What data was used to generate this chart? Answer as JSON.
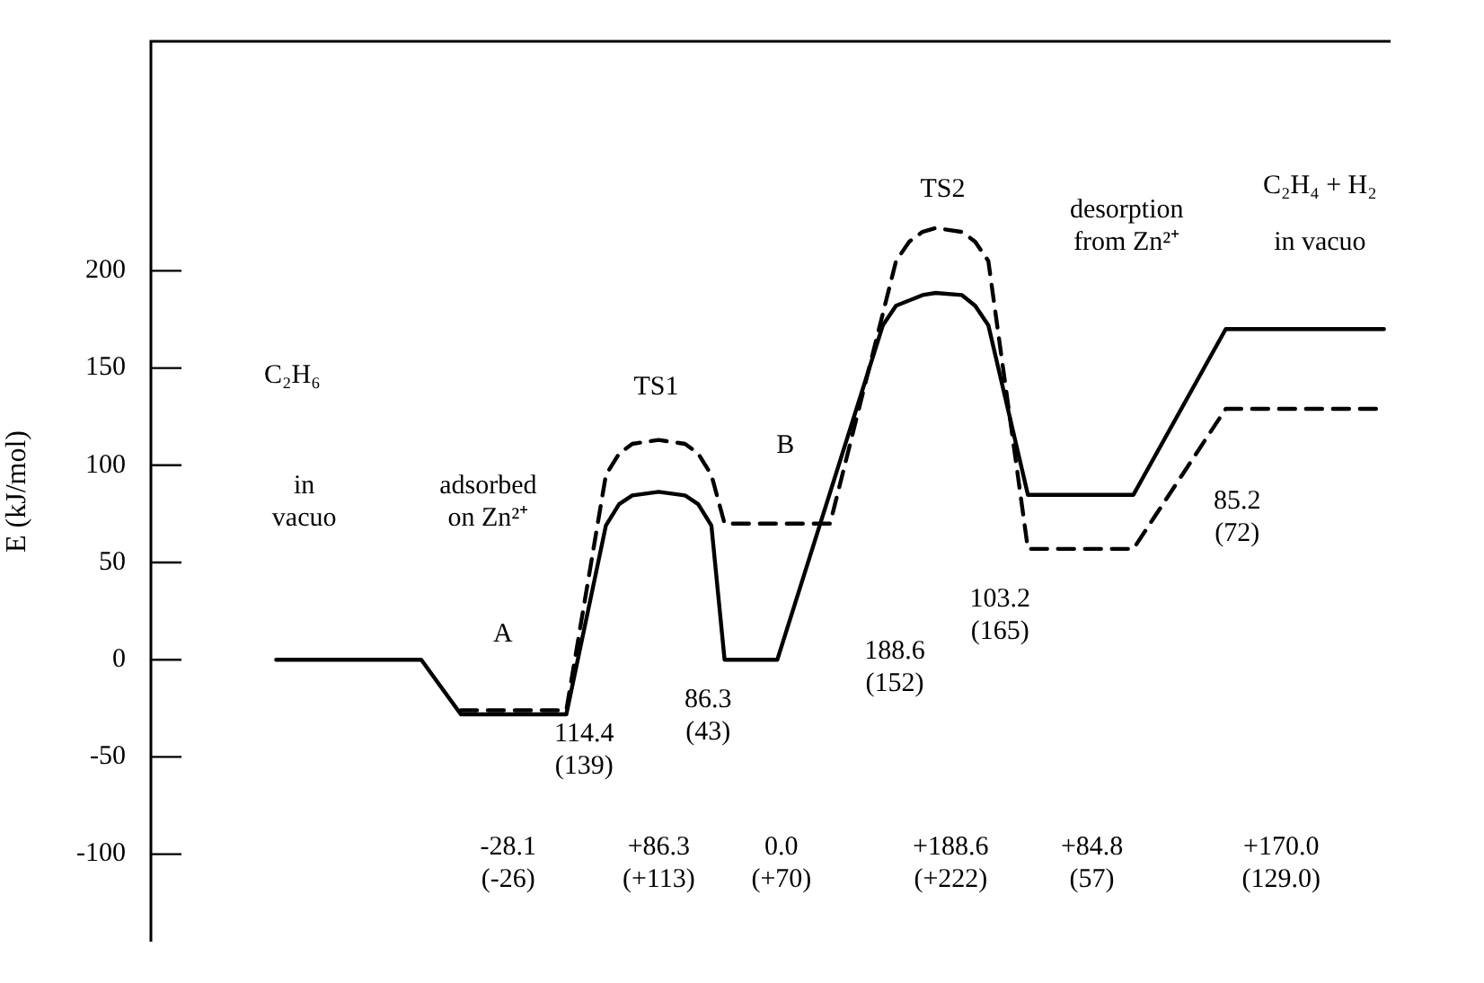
{
  "chart_data": {
    "type": "line",
    "ylabel": "E (kJ/mol)",
    "ylim": [
      -145,
      318
    ],
    "yticks": [
      -100,
      -50,
      0,
      50,
      100,
      150,
      200
    ],
    "tick_labels": "y",
    "grid": false,
    "legend": false,
    "marker": "none",
    "categories": [
      null,
      null,
      null,
      null,
      null,
      null,
      null,
      null,
      null,
      null,
      null,
      null,
      null,
      null,
      null,
      null,
      null,
      null,
      null,
      null,
      null,
      null,
      null,
      null,
      null,
      null,
      null,
      null,
      null,
      null,
      null,
      null,
      null,
      null,
      null,
      null,
      null,
      null,
      null,
      null,
      null,
      null,
      null,
      null,
      null,
      null,
      null,
      null,
      null,
      null,
      null,
      null,
      null,
      null,
      null,
      null,
      null,
      null,
      null,
      null,
      null,
      null,
      null,
      null,
      null,
      null,
      null,
      null,
      null,
      null,
      null,
      null,
      null,
      null,
      null,
      null,
      null,
      null,
      null,
      null,
      null,
      null,
      null,
      null,
      null,
      null,
      null,
      null,
      null,
      null,
      null,
      null,
      null,
      null
    ],
    "series": [
      {
        "color": "#000000",
        "line_style": "solid",
        "values": [
          null,
          null,
          null,
          null,
          null,
          null,
          null,
          null,
          null,
          0,
          null,
          null,
          null,
          null,
          null,
          null,
          null,
          null,
          null,
          null,
          0,
          null,
          null,
          -28.1,
          null,
          null,
          null,
          null,
          null,
          null,
          null,
          -28.1,
          null,
          null,
          69,
          80,
          84.5,
          null,
          86.3,
          null,
          84.5,
          80,
          69,
          0,
          null,
          null,
          null,
          0,
          null,
          null,
          null,
          null,
          null,
          null,
          null,
          172,
          182,
          null,
          187.5,
          188.6,
          null,
          187.5,
          182,
          172,
          null,
          null,
          84.8,
          null,
          null,
          null,
          null,
          null,
          null,
          null,
          84.8,
          null,
          null,
          null,
          null,
          null,
          null,
          170,
          null,
          null,
          null,
          null,
          null,
          null,
          null,
          null,
          null,
          null,
          null,
          170
        ]
      },
      {
        "color": "#000000",
        "line_style": "dashed",
        "values": [
          null,
          null,
          null,
          null,
          null,
          null,
          null,
          null,
          null,
          null,
          null,
          null,
          null,
          null,
          null,
          null,
          null,
          null,
          null,
          null,
          null,
          null,
          null,
          -26,
          null,
          null,
          null,
          null,
          null,
          null,
          null,
          -26,
          null,
          null,
          95,
          106,
          111,
          null,
          113,
          null,
          111,
          106,
          95,
          70,
          null,
          null,
          null,
          null,
          null,
          null,
          null,
          70,
          null,
          null,
          null,
          null,
          205,
          215,
          220,
          222,
          null,
          220,
          215,
          205,
          null,
          null,
          57,
          null,
          null,
          null,
          null,
          null,
          null,
          null,
          57,
          null,
          null,
          null,
          null,
          null,
          null,
          129,
          null,
          null,
          null,
          null,
          null,
          null,
          null,
          null,
          null,
          null,
          null,
          129
        ]
      }
    ],
    "annotations": [
      "C₂H₆",
      "in\nvacuo",
      "adsorbed\non Zn²⁺",
      "A",
      "TS1",
      "B",
      "TS2",
      "desorption\nfrom Zn²⁺",
      "C₂H₄ + H₂",
      "in vacuo",
      "114.4\n(139)",
      "86.3\n(43)",
      "188.6\n(152)",
      "103.2\n(165)",
      "85.2\n(72)",
      "-28.1\n(-26)",
      "+86.3\n(+113)",
      "0.0\n(+70)",
      "+188.6\n(+222)",
      "+84.8\n(57)",
      "+170.0\n(129.0)"
    ]
  }
}
